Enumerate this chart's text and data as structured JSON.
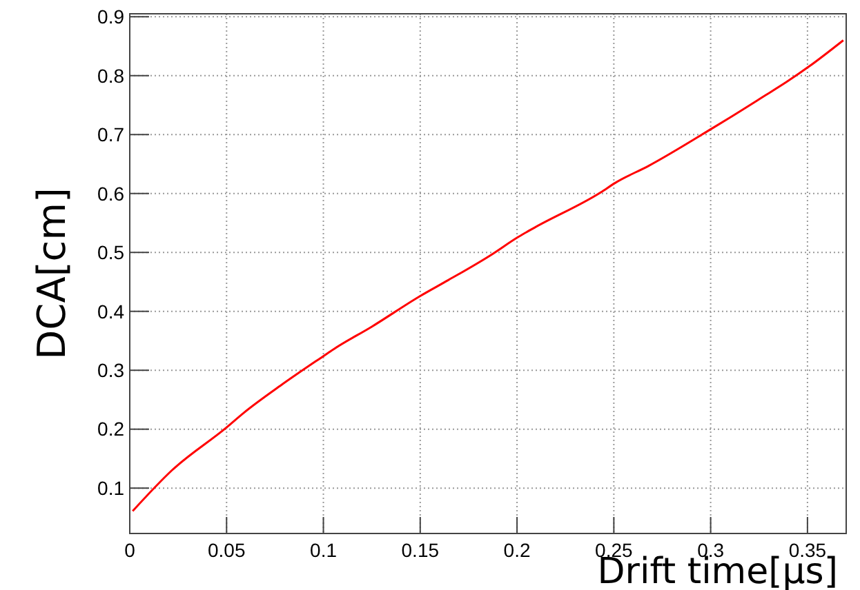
{
  "chart_data": {
    "type": "line",
    "xlabel": "Drift time[μs]",
    "ylabel": "DCA[cm]",
    "x": [
      0.0015,
      0.0217,
      0.05,
      0.0586,
      0.0783,
      0.1,
      0.1054,
      0.125,
      0.15,
      0.1645,
      0.1867,
      0.2005,
      0.209,
      0.2433,
      0.2507,
      0.268,
      0.301,
      0.31,
      0.327,
      0.3395,
      0.351,
      0.3685
    ],
    "series": [
      {
        "color": "#ff0000",
        "values": [
          0.061,
          0.13,
          0.203,
          0.227,
          0.275,
          0.324,
          0.336,
          0.374,
          0.426,
          0.453,
          0.496,
          0.526,
          0.542,
          0.602,
          0.618,
          0.647,
          0.711,
          0.729,
          0.764,
          0.79,
          0.816,
          0.86
        ]
      }
    ],
    "xlim": [
      0,
      0.37
    ],
    "xticks": [
      0,
      0.05,
      0.1,
      0.15,
      0.2,
      0.25,
      0.3,
      0.35
    ],
    "ylim": [
      0.023,
      0.905
    ],
    "yticks": [
      0.1,
      0.2,
      0.3,
      0.4,
      0.5,
      0.6,
      0.7,
      0.8,
      0.9
    ],
    "grid": true,
    "marker": "none",
    "line_style": "solid"
  }
}
